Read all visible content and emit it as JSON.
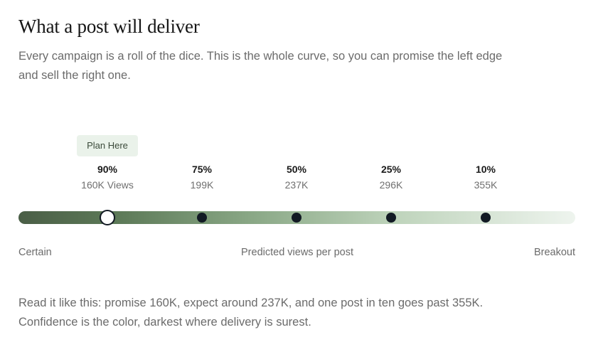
{
  "header": {
    "title": "What a post will deliver",
    "subtitle": "Every campaign is a roll of the dice. This is the whole curve, so you can promise the left edge and sell the right one."
  },
  "plan_badge": {
    "label": "Plan Here"
  },
  "markers": [
    {
      "percent": "90%",
      "value": "160K Views",
      "selected": true
    },
    {
      "percent": "75%",
      "value": "199K",
      "selected": false
    },
    {
      "percent": "50%",
      "value": "237K",
      "selected": false
    },
    {
      "percent": "25%",
      "value": "296K",
      "selected": false
    },
    {
      "percent": "10%",
      "value": "355K",
      "selected": false
    }
  ],
  "axis": {
    "left_label": "Certain",
    "center_label": "Predicted views per post",
    "right_label": "Breakout"
  },
  "footnote": {
    "line1": "Read it like this: promise 160K, expect around 237K, and one post in ten goes past 355K.",
    "line2": "Confidence is the color, darkest where delivery is surest."
  },
  "colors": {
    "gradient_dark": "#4a5e46",
    "gradient_light": "#eef4ee",
    "marker": "#121a24",
    "badge_bg": "#eaf2ea"
  }
}
